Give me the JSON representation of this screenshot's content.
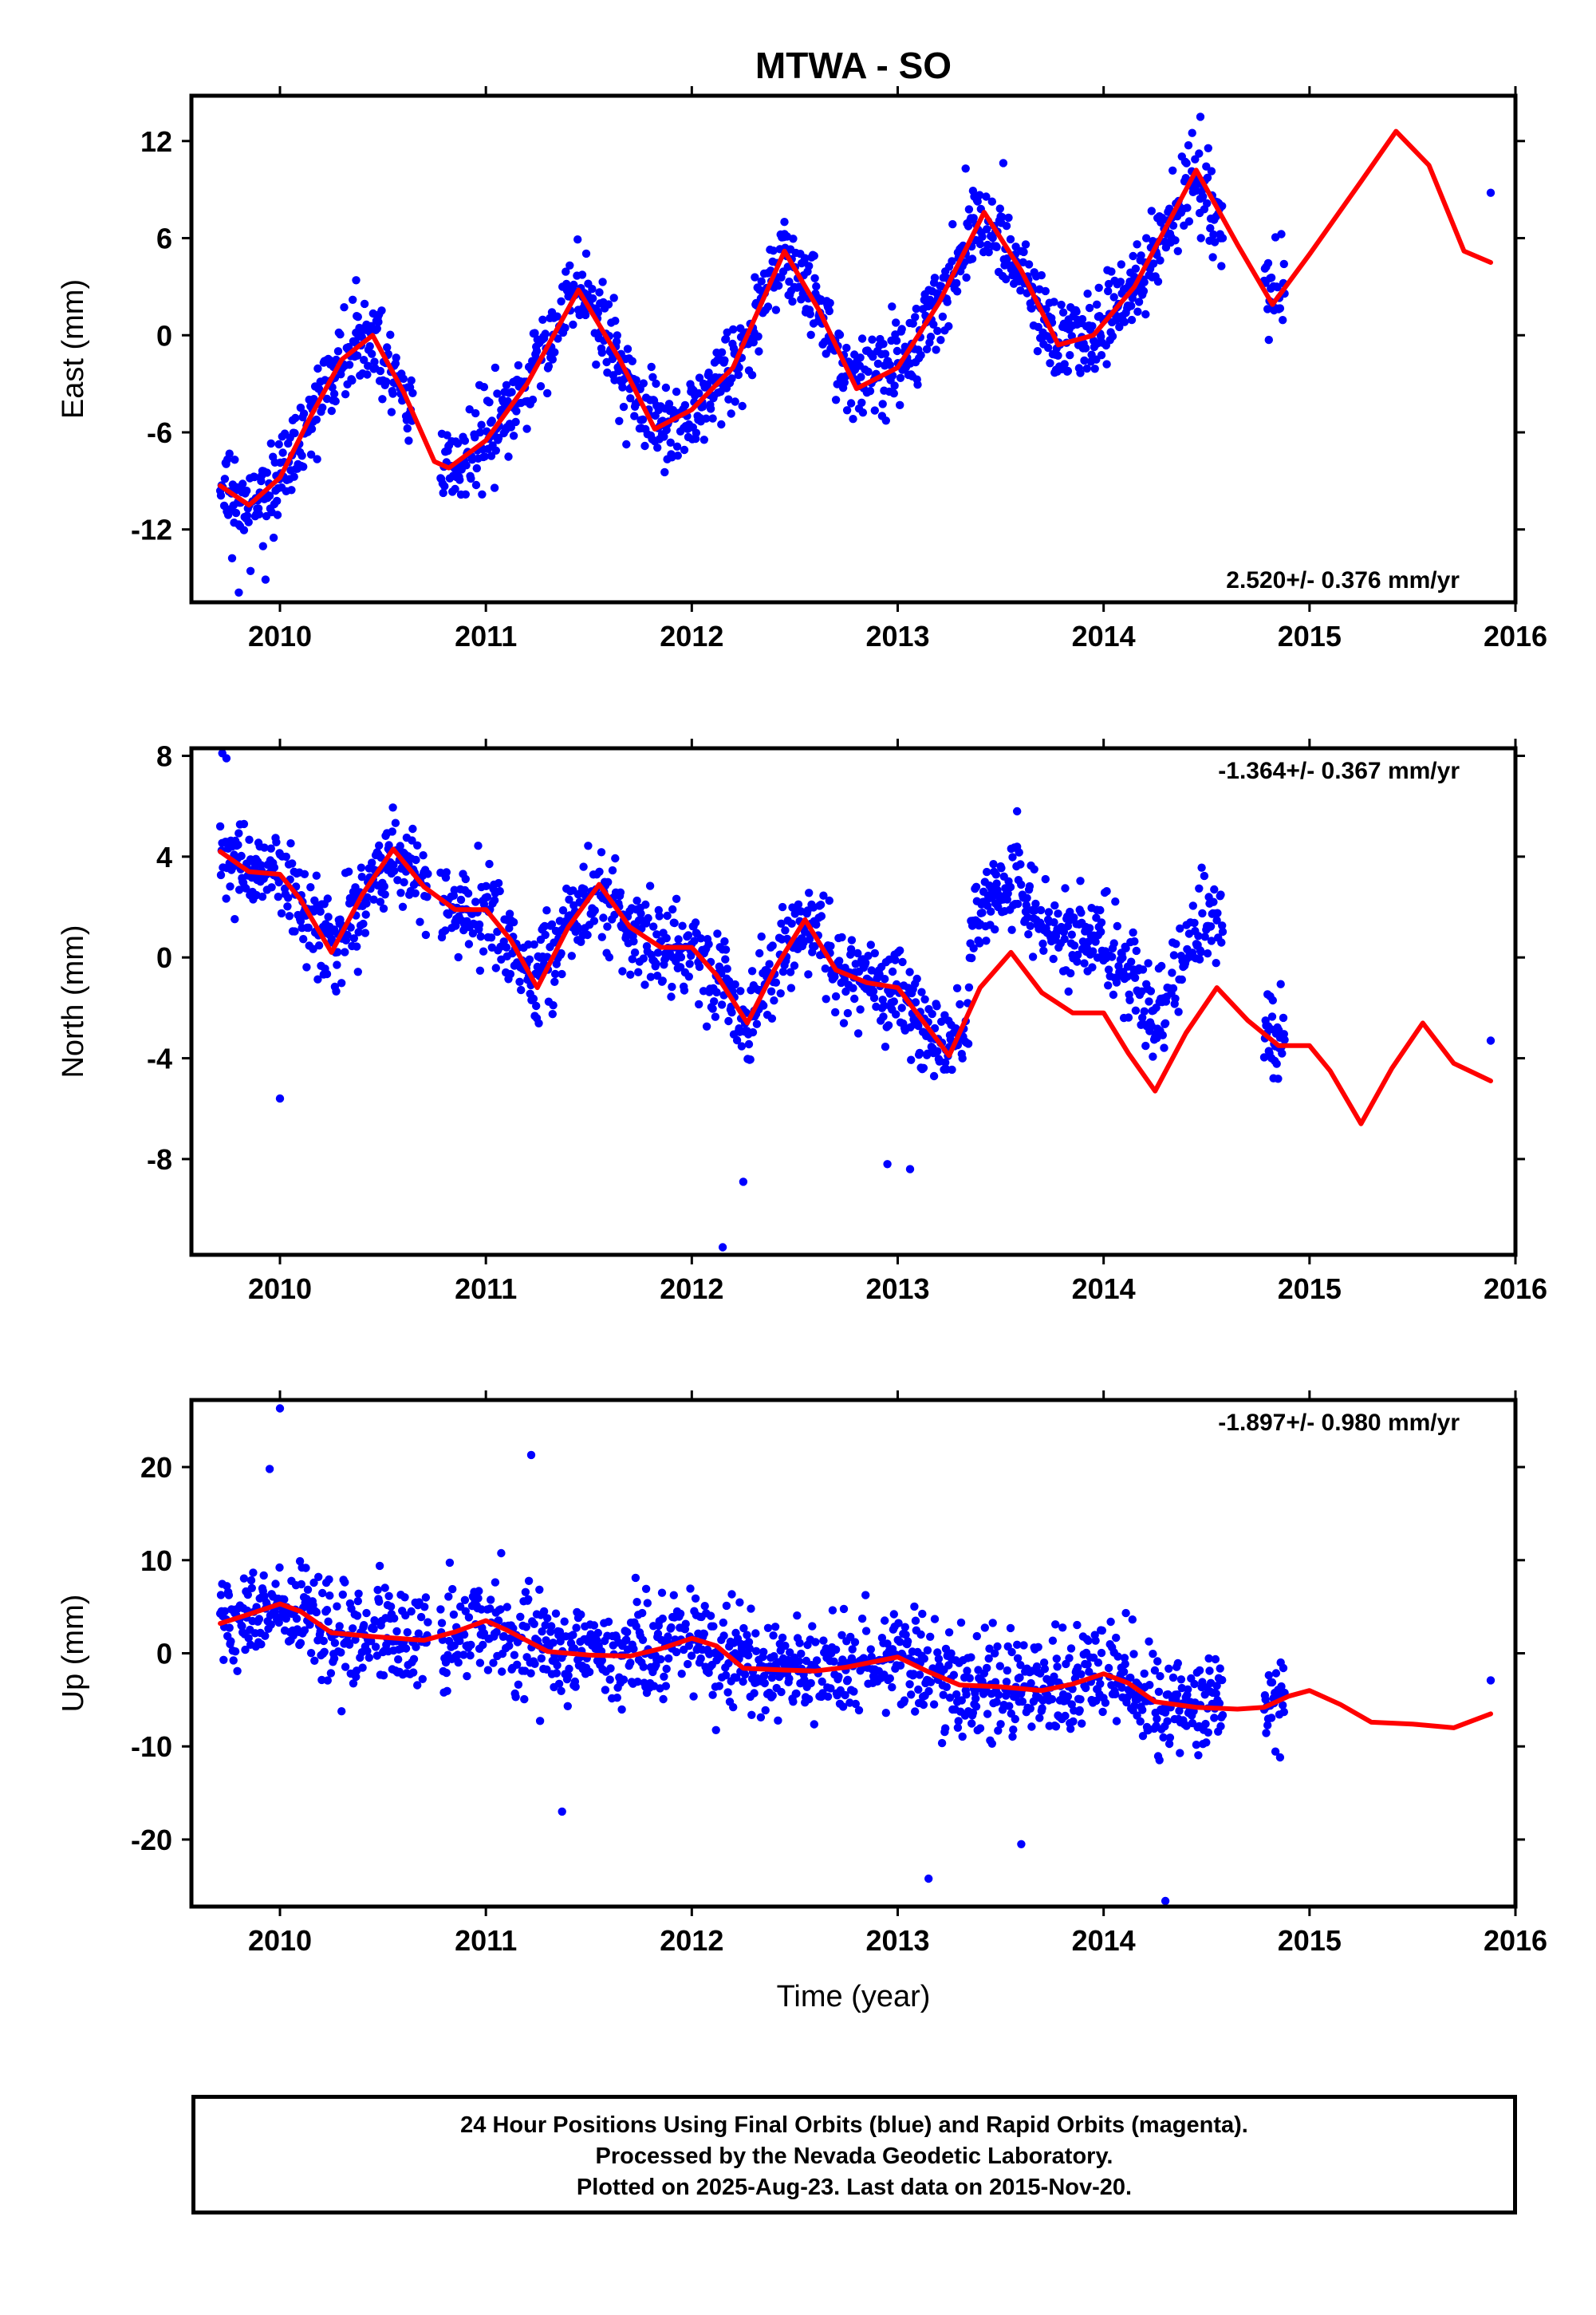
{
  "title": "MTWA - SO",
  "footer": {
    "line1": "24 Hour Positions Using Final Orbits (blue) and Rapid Orbits (magenta).",
    "line2": "Processed by the Nevada Geodetic Laboratory.",
    "line3": "Plotted on 2025-Aug-23. Last data on 2015-Nov-20."
  },
  "colors": {
    "data": "#0000ff",
    "model": "#ff0000",
    "frame": "#000000"
  },
  "chart_data": [
    {
      "type": "scatter",
      "ylabel": "East (mm)",
      "xlabel": "",
      "xlim": [
        2009.57,
        2016.0
      ],
      "ylim": [
        -16.5,
        14.8
      ],
      "xticks": [
        2010,
        2011,
        2012,
        2013,
        2014,
        2015,
        2016
      ],
      "yticks": [
        -12,
        -6,
        0,
        6,
        12
      ],
      "rate_label": "2.520+/- 0.376 mm/yr",
      "rate_position": "bottom-right",
      "model": {
        "x": [
          2009.71,
          2009.85,
          2010.0,
          2010.15,
          2010.3,
          2010.45,
          2010.6,
          2010.75,
          2010.82,
          2011.0,
          2011.2,
          2011.45,
          2011.65,
          2011.82,
          2012.0,
          2012.2,
          2012.45,
          2012.62,
          2012.8,
          2013.0,
          2013.2,
          2013.42,
          2013.6,
          2013.78,
          2013.95,
          2014.15,
          2014.45,
          2014.65,
          2014.82,
          2015.0,
          2015.25,
          2015.42,
          2015.58,
          2015.75,
          2015.88
        ],
        "y": [
          -9.3,
          -10.5,
          -8.8,
          -5.0,
          -1.5,
          0.0,
          -3.5,
          -7.8,
          -8.2,
          -6.5,
          -3.0,
          2.8,
          -1.5,
          -5.8,
          -4.6,
          -2.0,
          5.2,
          1.5,
          -3.3,
          -2.0,
          2.0,
          7.6,
          4.0,
          -0.6,
          0.0,
          3.0,
          10.2,
          5.6,
          1.9,
          5.0,
          9.5,
          12.6,
          10.5,
          5.2,
          4.5
        ]
      },
      "scatter": {
        "segments": [
          {
            "x0": 2009.71,
            "x1": 2010.65,
            "step": 0.0032,
            "amp": 2.0,
            "noise": 2.2
          },
          {
            "x0": 2010.78,
            "x1": 2014.58,
            "step": 0.0032,
            "amp": 2.0,
            "noise": 2.2
          },
          {
            "x0": 2014.78,
            "x1": 2014.88,
            "step": 0.0032,
            "amp": 2.0,
            "noise": 2.2
          }
        ],
        "points": [
          {
            "x": 2009.8,
            "y": -15.9
          },
          {
            "x": 2009.93,
            "y": -15.1
          },
          {
            "x": 2010.37,
            "y": 3.4
          },
          {
            "x": 2014.47,
            "y": 13.5
          },
          {
            "x": 2014.43,
            "y": 12.5
          },
          {
            "x": 2015.88,
            "y": 8.8
          },
          {
            "x": 2012.45,
            "y": 7.0
          },
          {
            "x": 2013.33,
            "y": 10.3
          }
        ]
      }
    },
    {
      "type": "scatter",
      "ylabel": "North (mm)",
      "xlabel": "",
      "xlim": [
        2009.57,
        2016.0
      ],
      "ylim": [
        -11.8,
        8.3
      ],
      "xticks": [
        2010,
        2011,
        2012,
        2013,
        2014,
        2015,
        2016
      ],
      "yticks": [
        -8,
        -4,
        0,
        4,
        8
      ],
      "rate_label": "-1.364+/- 0.367 mm/yr",
      "rate_position": "top-right",
      "model": {
        "x": [
          2009.71,
          2009.85,
          2010.0,
          2010.1,
          2010.25,
          2010.4,
          2010.55,
          2010.7,
          2010.85,
          2011.0,
          2011.12,
          2011.25,
          2011.4,
          2011.55,
          2011.7,
          2011.85,
          2012.0,
          2012.12,
          2012.27,
          2012.4,
          2012.55,
          2012.7,
          2012.85,
          2013.0,
          2013.12,
          2013.25,
          2013.4,
          2013.55,
          2013.7,
          2013.85,
          2014.0,
          2014.12,
          2014.25,
          2014.4,
          2014.55,
          2014.7,
          2014.85,
          2015.0,
          2015.1,
          2015.25,
          2015.4,
          2015.55,
          2015.7,
          2015.88
        ],
        "y": [
          4.2,
          3.4,
          3.3,
          2.3,
          0.2,
          2.5,
          4.3,
          2.8,
          1.9,
          1.9,
          0.7,
          -1.2,
          1.2,
          2.9,
          1.2,
          0.4,
          0.4,
          -0.7,
          -2.6,
          -0.5,
          1.5,
          -0.5,
          -1.0,
          -1.2,
          -2.5,
          -3.9,
          -1.2,
          0.2,
          -1.4,
          -2.2,
          -2.2,
          -3.8,
          -5.3,
          -3.0,
          -1.2,
          -2.5,
          -3.5,
          -3.5,
          -4.5,
          -6.6,
          -4.4,
          -2.6,
          -4.2,
          -4.9
        ]
      },
      "scatter": {
        "segments": [
          {
            "x0": 2009.71,
            "x1": 2010.72,
            "step": 0.0032,
            "amp": 0.3,
            "noise": 1.6
          },
          {
            "x0": 2010.78,
            "x1": 2014.58,
            "step": 0.0032,
            "amp": 0.3,
            "noise": 1.6
          },
          {
            "x0": 2014.78,
            "x1": 2014.88,
            "step": 0.0032,
            "amp": 0.3,
            "noise": 1.6
          }
        ],
        "offsets": [
          {
            "x0": 2013.35,
            "x1": 2014.6,
            "dy": 3.0
          }
        ],
        "points": [
          {
            "x": 2009.72,
            "y": 8.1
          },
          {
            "x": 2009.74,
            "y": 7.9
          },
          {
            "x": 2010.0,
            "y": -5.6
          },
          {
            "x": 2012.15,
            "y": -11.5
          },
          {
            "x": 2012.25,
            "y": -8.9
          },
          {
            "x": 2013.58,
            "y": 5.8
          },
          {
            "x": 2015.88,
            "y": -3.3
          },
          {
            "x": 2012.95,
            "y": -8.2
          },
          {
            "x": 2013.06,
            "y": -8.4
          }
        ]
      }
    },
    {
      "type": "scatter",
      "ylabel": "Up (mm)",
      "xlabel": "Time (year)",
      "xlim": [
        2009.57,
        2016.0
      ],
      "ylim": [
        -27.2,
        27.2
      ],
      "xticks": [
        2010,
        2011,
        2012,
        2013,
        2014,
        2015,
        2016
      ],
      "yticks": [
        -20,
        -10,
        0,
        10,
        20
      ],
      "rate_label": "-1.897+/- 0.980 mm/yr",
      "rate_position": "top-right",
      "model": {
        "x": [
          2009.71,
          2009.85,
          2010.0,
          2010.1,
          2010.25,
          2010.45,
          2010.7,
          2010.85,
          2011.0,
          2011.1,
          2011.3,
          2011.5,
          2011.7,
          2011.85,
          2012.0,
          2012.12,
          2012.25,
          2012.45,
          2012.6,
          2012.75,
          2013.0,
          2013.15,
          2013.3,
          2013.5,
          2013.7,
          2013.85,
          2014.0,
          2014.12,
          2014.25,
          2014.45,
          2014.65,
          2014.78,
          2014.9,
          2015.0,
          2015.15,
          2015.3,
          2015.5,
          2015.7,
          2015.88
        ],
        "y": [
          3.2,
          4.2,
          5.3,
          4.5,
          2.2,
          1.8,
          1.4,
          2.3,
          3.5,
          2.5,
          0.2,
          -0.2,
          -0.3,
          0.5,
          1.6,
          0.8,
          -1.6,
          -1.8,
          -1.9,
          -1.5,
          -0.4,
          -2.0,
          -3.4,
          -3.6,
          -4.0,
          -3.3,
          -2.2,
          -3.2,
          -5.2,
          -5.8,
          -6.0,
          -5.8,
          -4.6,
          -4.0,
          -5.5,
          -7.4,
          -7.6,
          -8.0,
          -6.5
        ]
      },
      "scatter": {
        "segments": [
          {
            "x0": 2009.71,
            "x1": 2010.72,
            "step": 0.0032,
            "amp": 0.0,
            "noise": 5.0
          },
          {
            "x0": 2010.78,
            "x1": 2014.58,
            "step": 0.0032,
            "amp": 0.0,
            "noise": 5.0
          },
          {
            "x0": 2014.78,
            "x1": 2014.88,
            "step": 0.0032,
            "amp": 0.0,
            "noise": 5.0
          }
        ],
        "points": [
          {
            "x": 2010.0,
            "y": 26.3
          },
          {
            "x": 2011.22,
            "y": 21.3
          },
          {
            "x": 2013.15,
            "y": -24.2
          },
          {
            "x": 2014.3,
            "y": -26.6
          },
          {
            "x": 2015.88,
            "y": -2.9
          },
          {
            "x": 2009.95,
            "y": 19.8
          },
          {
            "x": 2011.37,
            "y": -17.0
          },
          {
            "x": 2013.6,
            "y": -20.5
          }
        ]
      }
    }
  ]
}
